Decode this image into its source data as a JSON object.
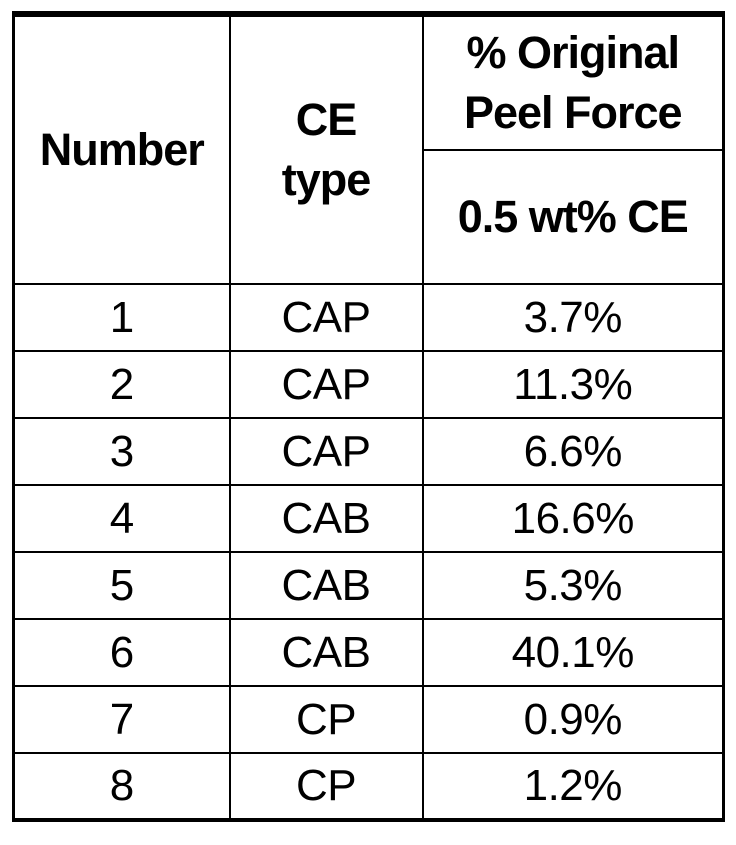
{
  "table": {
    "headers": {
      "number": "Number",
      "ce_type_lines": [
        "CE",
        "type"
      ],
      "peel_force_lines": [
        "% Original",
        "Peel Force"
      ],
      "subheader": "0.5 wt% CE"
    },
    "rows": [
      {
        "number": "1",
        "ce_type": "CAP",
        "peel": "3.7%"
      },
      {
        "number": "2",
        "ce_type": "CAP",
        "peel": "11.3%"
      },
      {
        "number": "3",
        "ce_type": "CAP",
        "peel": "6.6%"
      },
      {
        "number": "4",
        "ce_type": "CAB",
        "peel": "16.6%"
      },
      {
        "number": "5",
        "ce_type": "CAB",
        "peel": "5.3%"
      },
      {
        "number": "6",
        "ce_type": "CAB",
        "peel": "40.1%"
      },
      {
        "number": "7",
        "ce_type": "CP",
        "peel": "0.9%"
      },
      {
        "number": "8",
        "ce_type": "CP",
        "peel": "1.2%"
      }
    ]
  },
  "colors": {
    "text": "#000000",
    "border": "#000000",
    "background": "#ffffff"
  }
}
